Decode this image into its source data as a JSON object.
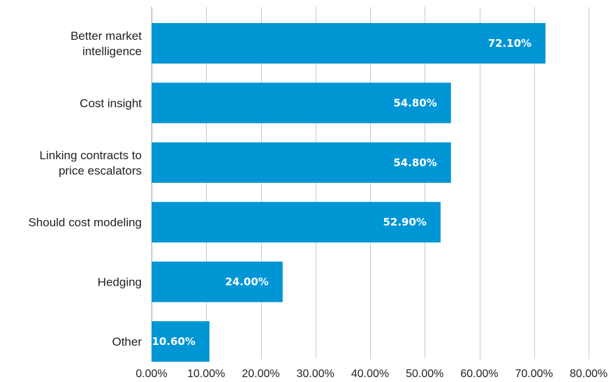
{
  "chart_data": {
    "type": "bar",
    "orientation": "horizontal",
    "title": "",
    "xlabel": "",
    "ylabel": "",
    "categories": [
      [
        "Better market",
        "intelligence"
      ],
      [
        "Cost insight"
      ],
      [
        "Linking contracts to",
        "price escalators"
      ],
      [
        "Should cost modeling"
      ],
      [
        "Hedging"
      ],
      [
        "Other"
      ]
    ],
    "values": [
      72.1,
      54.8,
      54.8,
      52.9,
      24.0,
      10.6
    ],
    "data_labels": [
      "72.10%",
      "54.80%",
      "54.80%",
      "52.90%",
      "24.00%",
      "10.60%"
    ],
    "xlim": [
      0,
      80
    ],
    "x_ticks": [
      0,
      10,
      20,
      30,
      40,
      50,
      60,
      70,
      80
    ],
    "x_tick_labels": [
      "0.00%",
      "10.00%",
      "20.00%",
      "30.00%",
      "40.00%",
      "50.00%",
      "60.00%",
      "70.00%",
      "80.00%"
    ],
    "bar_color": "#0095D4",
    "grid": true,
    "legend": "none"
  }
}
